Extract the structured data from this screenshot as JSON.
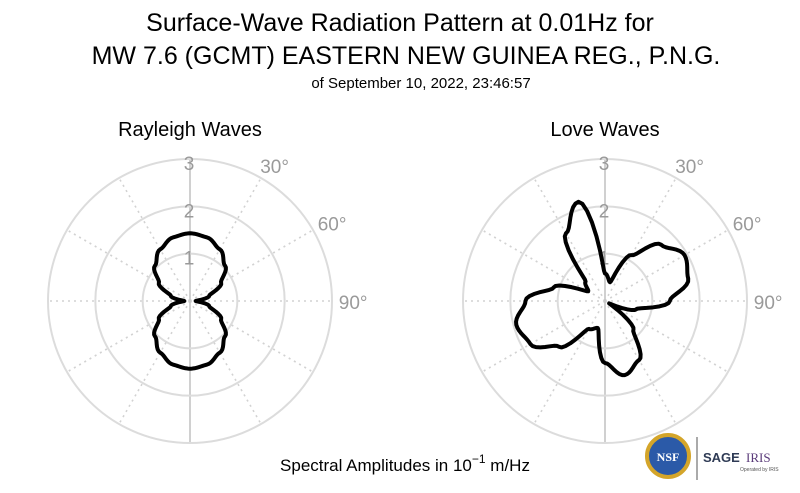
{
  "figure": {
    "title_line1": "Surface-Wave Radiation Pattern at 0.01Hz for",
    "title_line2": "MW 7.6 (GCMT) EASTERN NEW GUINEA REG., P.N.G.",
    "subtitle": "of September 10, 2022, 23:46:57",
    "footer_prefix": "Spectral Amplitudes in ",
    "footer_base": "10",
    "footer_exp": "−1",
    "footer_suffix": " m/Hz"
  },
  "logos": {
    "nsf": "NSF",
    "sage": "SAGE",
    "iris": "IRIS",
    "operated": "Operated by IRIS"
  },
  "chart_data": [
    {
      "type": "polar-line",
      "title": "Rayleigh Waves",
      "radial_ticks": [
        "1",
        "2",
        "3"
      ],
      "angle_labels": [
        "30°",
        "60°",
        "90°"
      ],
      "rmax": 3,
      "grid": true,
      "theta_deg": [
        0,
        15,
        30,
        45,
        60,
        75,
        90,
        105,
        120,
        135,
        150,
        165,
        180,
        195,
        210,
        225,
        240,
        255,
        270,
        285,
        300,
        315,
        330,
        345
      ],
      "r": [
        1.43,
        1.39,
        1.26,
        1.05,
        0.76,
        0.42,
        0.12,
        0.42,
        0.76,
        1.05,
        1.26,
        1.39,
        1.43,
        1.39,
        1.26,
        1.05,
        0.76,
        0.42,
        0.12,
        0.42,
        0.76,
        1.05,
        1.26,
        1.39
      ]
    },
    {
      "type": "polar-line",
      "title": "Love Waves",
      "radial_ticks": [
        "1",
        "2",
        "3"
      ],
      "angle_labels": [
        "30°",
        "60°",
        "90°"
      ],
      "rmax": 3,
      "grid": true,
      "theta_deg": [
        0,
        15,
        30,
        45,
        60,
        75,
        90,
        105,
        120,
        135,
        150,
        165,
        180,
        195,
        210,
        225,
        240,
        255,
        270,
        285,
        300,
        315,
        330,
        345
      ],
      "r": [
        0.58,
        0.41,
        1.12,
        1.68,
        1.94,
        1.82,
        1.37,
        0.68,
        0.1,
        0.85,
        1.44,
        1.62,
        1.31,
        0.59,
        0.68,
        1.37,
        1.82,
        1.94,
        1.68,
        1.12,
        0.41,
        0.58,
        1.65,
        2.17
      ]
    }
  ]
}
